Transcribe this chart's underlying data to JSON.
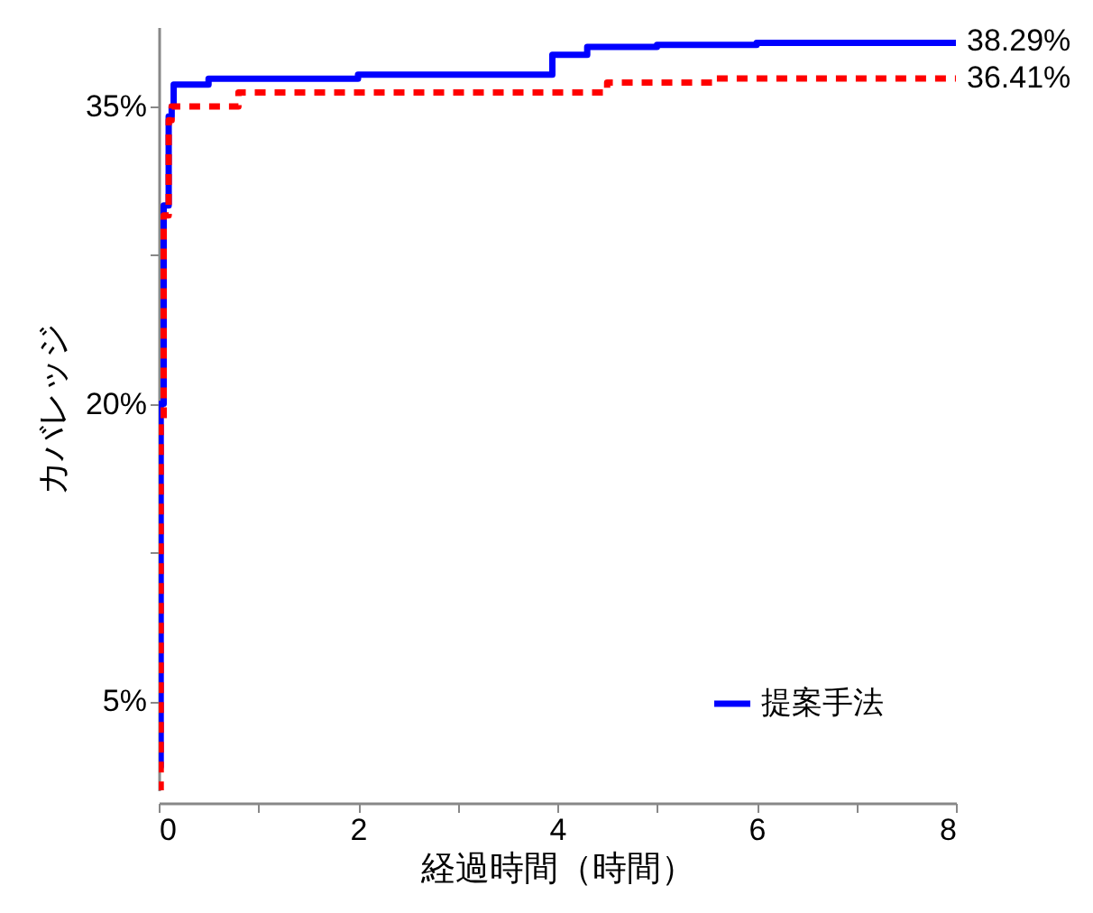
{
  "chart_data": {
    "type": "step",
    "xlabel": "経過時間（時間）",
    "ylabel": "カバレッジ",
    "series": [
      {
        "name": "提案手法",
        "color": "#0000ff",
        "line_style": "solid",
        "x": [
          0,
          0.02,
          0.05,
          0.1,
          0.13,
          0.15,
          0.5,
          2,
          3.95,
          4.3,
          5,
          6,
          8
        ],
        "values": [
          1.7,
          20,
          30,
          34.5,
          35,
          36.1,
          36.4,
          36.6,
          37.6,
          38.0,
          38.1,
          38.2,
          38.29
        ]
      },
      {
        "color": "#ff0000",
        "line_style": "dashed",
        "x": [
          0,
          0.02,
          0.05,
          0.1,
          0.13,
          0.8,
          4.5,
          5.6,
          8
        ],
        "values": [
          0.5,
          19,
          29.5,
          34.3,
          35,
          35.7,
          36.2,
          36.41,
          36.41
        ]
      }
    ],
    "xlim": [
      0,
      8
    ],
    "ylim": [
      0.5,
      39
    ],
    "xticks": [
      0,
      {
        "value": 1,
        "label": null
      },
      2,
      {
        "value": 3,
        "label": null
      },
      4,
      {
        "value": 5,
        "label": null
      },
      6,
      {
        "value": 7,
        "label": null
      },
      8
    ],
    "yticks": [
      {
        "value": 5,
        "label": "5%"
      },
      {
        "value": 12.5,
        "label": null
      },
      {
        "value": 20,
        "label": "20%"
      },
      {
        "value": 27.5,
        "label": null
      },
      {
        "value": 35,
        "label": "35%"
      }
    ],
    "annotations": [
      {
        "text": "38.29%",
        "x": 8,
        "y": 38.29
      },
      {
        "text": "36.41%",
        "x": 8,
        "y": 36.41
      }
    ],
    "grid": false,
    "legend": "bottom right"
  }
}
